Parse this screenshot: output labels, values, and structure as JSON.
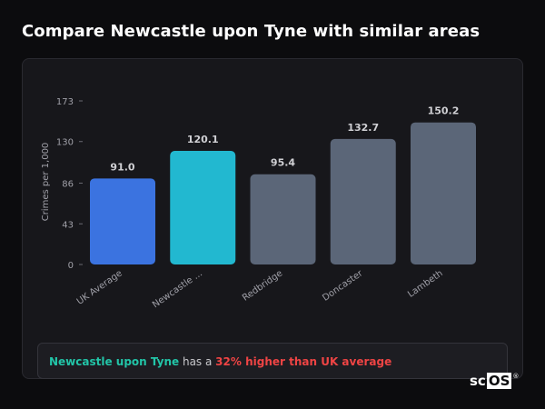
{
  "page": {
    "title": "Compare Newcastle upon Tyne with similar areas"
  },
  "chart_data": {
    "type": "bar",
    "ylabel": "Crimes per 1,000",
    "xlabel": "",
    "yticks": [
      0,
      43,
      86,
      130,
      173
    ],
    "ylim": [
      0,
      173
    ],
    "grid": false,
    "categories": [
      "UK Average",
      "Newcastle ...",
      "Redbridge",
      "Doncaster",
      "Lambeth"
    ],
    "values": [
      91.0,
      120.1,
      95.4,
      132.7,
      150.2
    ],
    "value_labels": [
      "91.0",
      "120.1",
      "95.4",
      "132.7",
      "150.2"
    ],
    "bar_colors": [
      "#3b73e0",
      "#22b8d0",
      "#5b6678",
      "#5b6678",
      "#5b6678"
    ]
  },
  "summary": {
    "area": "Newcastle upon Tyne",
    "middle": " has a ",
    "difference": "32% higher than UK average"
  },
  "logo": {
    "prefix": "sc",
    "box": "OS",
    "mark": "®"
  }
}
